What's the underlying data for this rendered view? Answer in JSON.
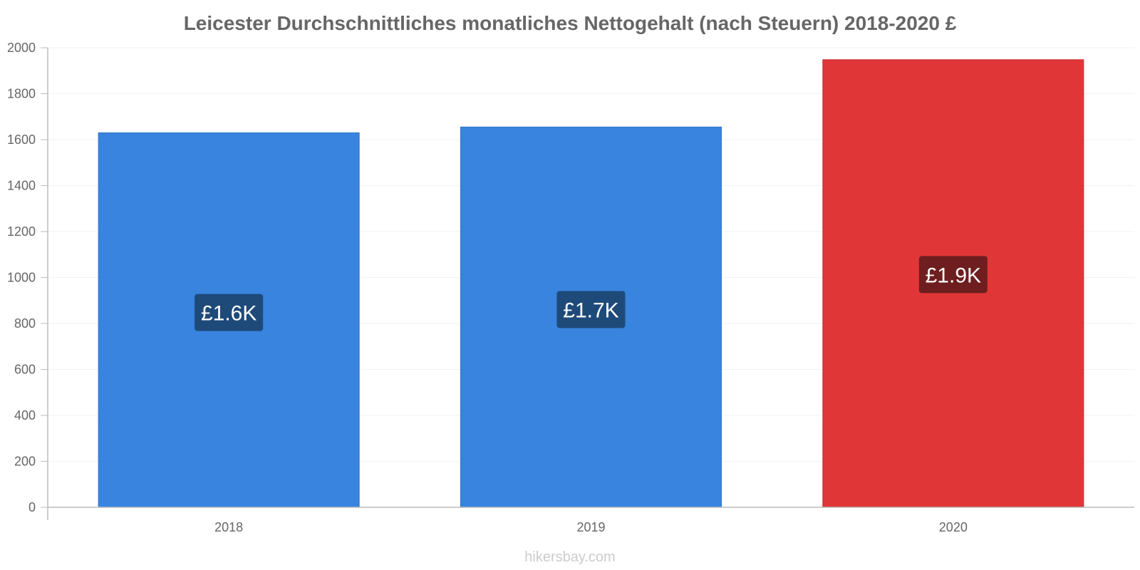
{
  "chart_data": {
    "type": "bar",
    "title": "Leicester Durchschnittliches monatliches Nettogehalt (nach Steuern) 2018-2020 £",
    "categories": [
      "2018",
      "2019",
      "2020"
    ],
    "values": [
      1630,
      1655,
      1948
    ],
    "data_labels": [
      "£1.6K",
      "£1.7K",
      "£1.9K"
    ],
    "ylim": [
      0,
      2000
    ],
    "y_ticks": [
      0,
      200,
      400,
      600,
      800,
      1000,
      1200,
      1400,
      1600,
      1800,
      2000
    ],
    "grid": true,
    "xlabel": "",
    "ylabel": "",
    "colors": {
      "bars": [
        "#3884de",
        "#3884de",
        "#e13637"
      ],
      "bar_borders": [
        "#2f74c5",
        "#2f74c5",
        "#c92c2d"
      ],
      "label_boxes": [
        "#1e4a7a",
        "#1e4a7a",
        "#6e1e1e"
      ]
    }
  },
  "watermark": "hikersbay.com"
}
